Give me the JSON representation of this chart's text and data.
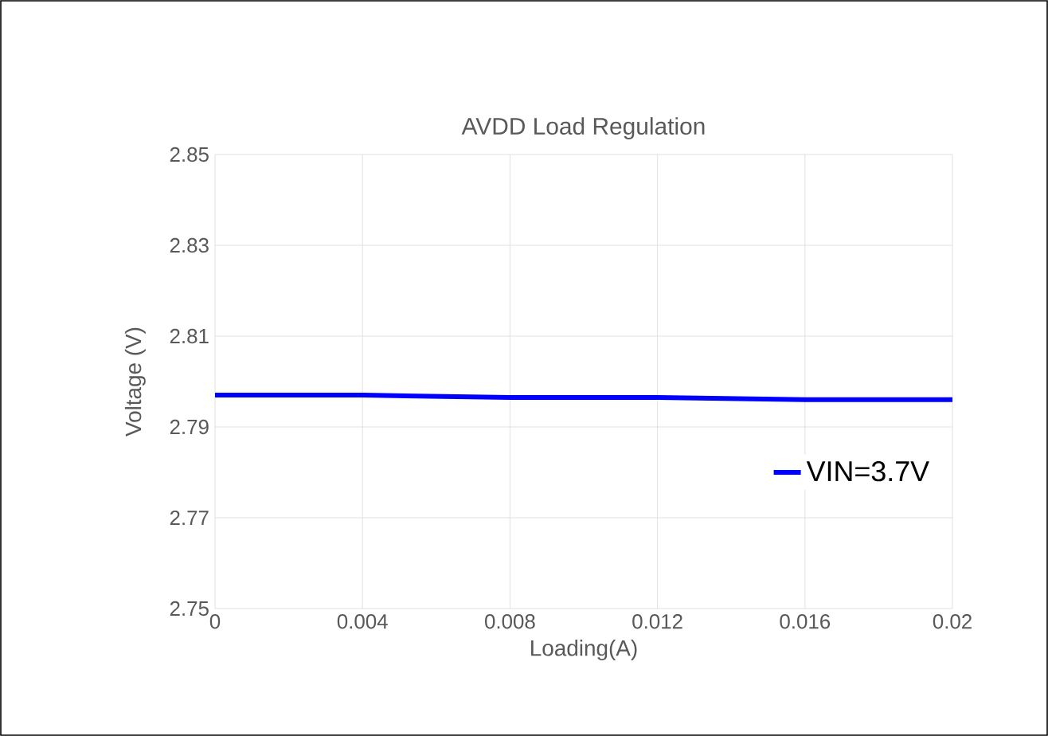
{
  "chart_data": {
    "type": "line",
    "title": "AVDD Load Regulation",
    "xlabel": "Loading(A)",
    "ylabel": "Voltage (V)",
    "x": [
      0,
      0.004,
      0.008,
      0.012,
      0.016,
      0.02
    ],
    "series": [
      {
        "name": "VIN=3.7V",
        "color": "#0000ff",
        "values": [
          2.797,
          2.797,
          2.7965,
          2.7965,
          2.796,
          2.796
        ]
      }
    ],
    "xlim": [
      0,
      0.02
    ],
    "xticks": [
      0,
      0.004,
      0.008,
      0.012,
      0.016,
      0.02
    ],
    "ylim": [
      2.75,
      2.85
    ],
    "yticks": [
      2.75,
      2.77,
      2.79,
      2.81,
      2.83,
      2.85
    ],
    "grid": true,
    "legend": "right",
    "marker": "none",
    "line_style": "solid"
  }
}
